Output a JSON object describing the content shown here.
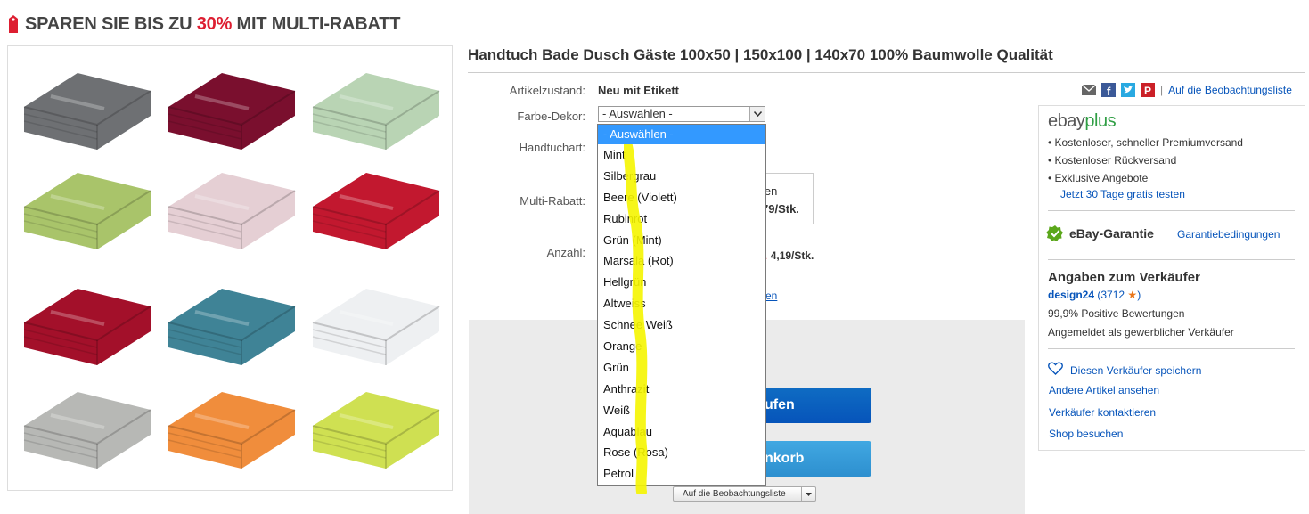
{
  "banner": {
    "prefix": "SPAREN SIE BIS ZU ",
    "percent": "30%",
    "suffix": " MIT MULTI-RABATT"
  },
  "item": {
    "title": "Handtuch Bade Dusch Gäste 100x50 | 150x100 | 140x70 100% Baumwolle Qualität"
  },
  "fields": {
    "condition_label": "Artikelzustand:",
    "condition_value": "Neu mit Etikett",
    "color_label": "Farbe-Dekor:",
    "color_selected": "- Auswählen -",
    "type_label": "Handtuchart:",
    "multi_label": "Multi-Rabatt:",
    "multi_line1": "ufen",
    "multi_line2": "79/Stk.",
    "qty_label": "Anzahl:",
    "qty_price": "4,19/Stk.",
    "partial_link": "en"
  },
  "dropdown": {
    "options": [
      "- Auswählen -",
      "Mint",
      "Silbergrau",
      "Beere (Violett)",
      "Rubinrot",
      "Grün (Mint)",
      "Marsala (Rot)",
      "Hellgrün",
      "Altweiss",
      "Schnee Weiß",
      "Orange",
      "Grün",
      "Anthrazit",
      "Weiß",
      "Aquablau",
      "Rose (Rosa)",
      "Petrol"
    ],
    "selected_index": 0
  },
  "buttons": {
    "buy_now": "ufen",
    "add_cart": "nkorb",
    "watch_small": "Auf die Beobachtungsliste"
  },
  "share": {
    "icons": [
      "email-icon",
      "facebook-icon",
      "twitter-icon",
      "pinterest-icon"
    ],
    "separator": "|",
    "watch_link": "Auf die Beobachtungsliste"
  },
  "sidebar": {
    "plus_logo_ebay": "ebay",
    "plus_logo_plus": "plus",
    "plus_benefits": [
      "Kostenloser, schneller Premiumversand",
      "Kostenloser Rückversand",
      "Exklusive Angebote"
    ],
    "plus_trial": "Jetzt 30 Tage gratis testen",
    "guarantee_title": "eBay-Garantie",
    "guarantee_link": "Garantiebedingungen",
    "seller_heading": "Angaben zum Verkäufer",
    "seller_name": "design24",
    "seller_score_open": "(3712",
    "seller_score_close": ")",
    "seller_positive": "99,9% Positive Bewertungen",
    "seller_business": "Angemeldet als gewerblicher Verkäufer",
    "save_seller": "Diesen Verkäufer speichern",
    "other_items": "Andere Artikel ansehen",
    "contact_seller": "Verkäufer kontaktieren",
    "visit_shop": "Shop besuchen"
  },
  "colors": {
    "accent_red": "#dd1e31",
    "link_blue": "#0654ba",
    "highlight_yellow": "#f5f500",
    "towels": [
      "#6e7073",
      "#7a0f2e",
      "#b9d4b4",
      "#a9c46a",
      "#e5cfd4",
      "#c2182f",
      "#a3102a",
      "#3f8396",
      "#eef0f2",
      "#b7b8b5",
      "#f08d3c",
      "#cfe052"
    ]
  }
}
